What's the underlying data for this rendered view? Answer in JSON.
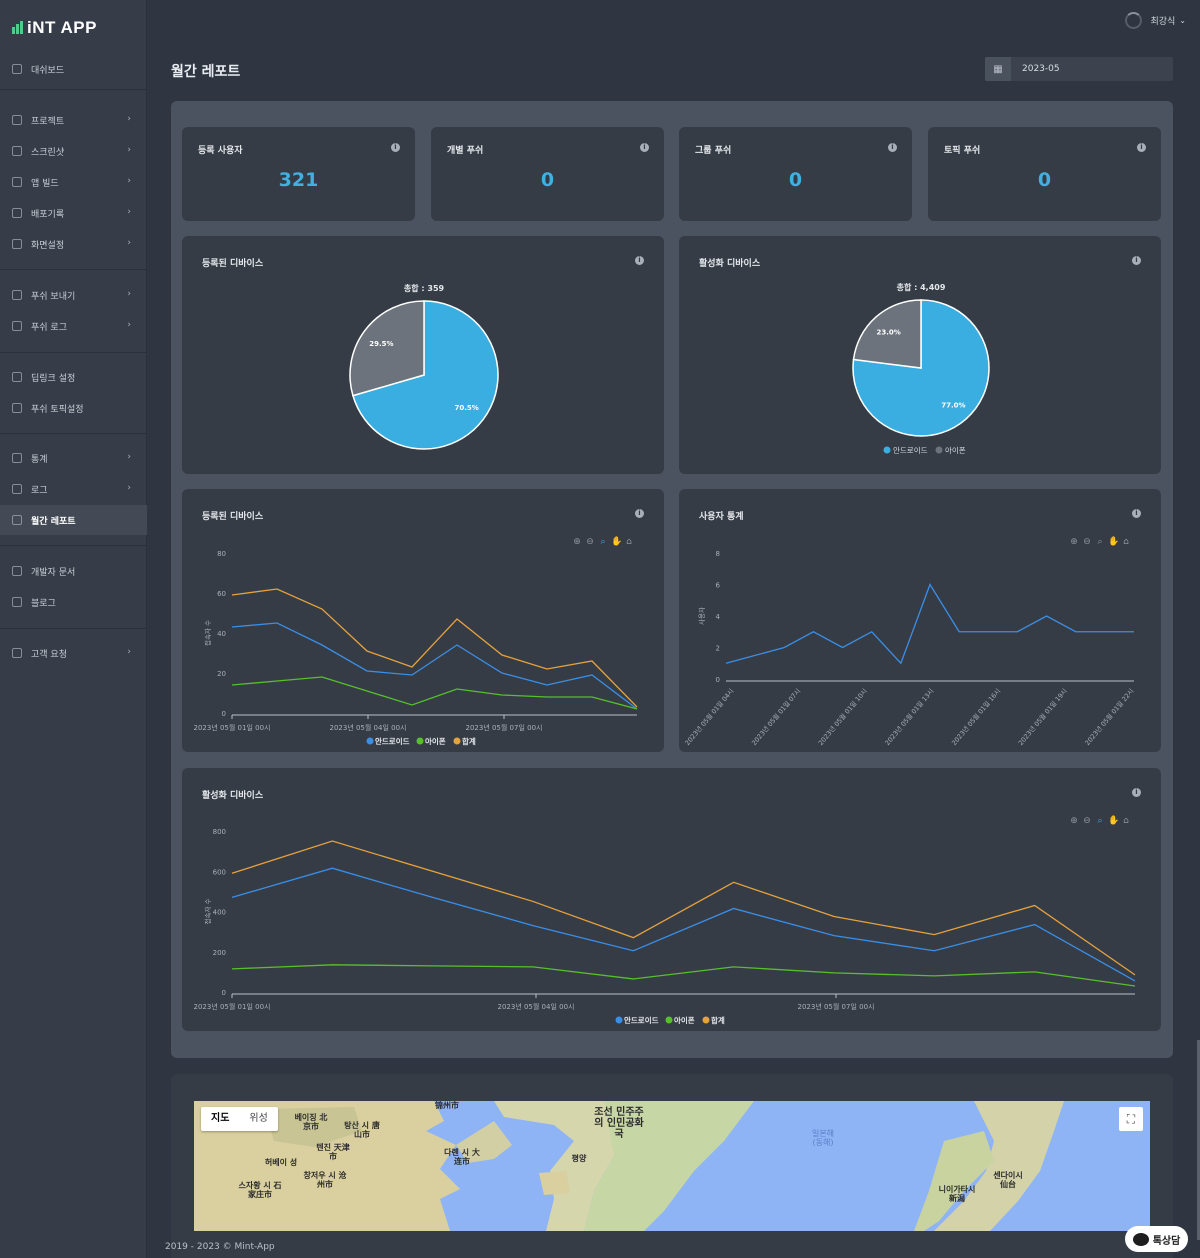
{
  "app": {
    "logo_text": "iNT APP"
  },
  "sidebar": {
    "items": [
      {
        "label": "대쉬보드",
        "icon": "dashboard-icon",
        "chevron": false
      },
      {
        "label": "프로젝트",
        "icon": "shield-icon",
        "chevron": true
      },
      {
        "label": "스크린샷",
        "icon": "send-icon",
        "chevron": true
      },
      {
        "label": "앱 빌드",
        "icon": "shield-icon",
        "chevron": true
      },
      {
        "label": "배포기록",
        "icon": "shield-icon",
        "chevron": true
      },
      {
        "label": "화면설정",
        "icon": "window-icon",
        "chevron": true
      },
      {
        "label": "푸쉬 보내기",
        "icon": "send-icon",
        "chevron": true
      },
      {
        "label": "푸쉬 로그",
        "icon": "send-icon",
        "chevron": true
      },
      {
        "label": "딥링크 설정",
        "icon": "document-icon",
        "chevron": false
      },
      {
        "label": "푸쉬 토픽설정",
        "icon": "document-icon",
        "chevron": false
      },
      {
        "label": "통계",
        "icon": "bar-chart-icon",
        "chevron": true
      },
      {
        "label": "로그",
        "icon": "table-icon",
        "chevron": true
      },
      {
        "label": "월간 레포트",
        "icon": "calendar-icon",
        "chevron": false,
        "active": true
      },
      {
        "label": "개발자 문서",
        "icon": "document-icon",
        "chevron": false
      },
      {
        "label": "블로그",
        "icon": "pen-icon",
        "chevron": false
      },
      {
        "label": "고객 요청",
        "icon": "chat-icon",
        "chevron": true
      }
    ]
  },
  "header": {
    "user_name": "최강식",
    "page_title": "월간 레포트",
    "date_value": "2023-05"
  },
  "stats": [
    {
      "title": "등록 사용자",
      "value": "321"
    },
    {
      "title": "개별 푸쉬",
      "value": "0"
    },
    {
      "title": "그룹 푸쉬",
      "value": "0"
    },
    {
      "title": "토픽 푸쉬",
      "value": "0"
    }
  ],
  "colors": {
    "android": "#3aaee0",
    "iphone": "#6c737c",
    "line_android": "#3a8ee6",
    "line_iphone": "#56c02b",
    "line_total": "#e6a23c"
  },
  "chart_data": [
    {
      "type": "pie",
      "title": "등록된 디바이스",
      "total_label": "총합 : 359",
      "slices": [
        {
          "name": "안드로이드",
          "value": 70.5,
          "label": "70.5%"
        },
        {
          "name": "아이폰",
          "value": 29.5,
          "label": "29.5%"
        }
      ]
    },
    {
      "type": "pie",
      "title": "활성화 디바이스",
      "total_label": "총합 : 4,409",
      "slices": [
        {
          "name": "안드로이드",
          "value": 77.0,
          "label": "77.0%"
        },
        {
          "name": "아이폰",
          "value": 23.0,
          "label": "23.0%"
        }
      ],
      "legend": [
        "안드로이드",
        "아이폰"
      ]
    },
    {
      "type": "line",
      "title": "등록된 디바이스",
      "ylabel": "접속자 수",
      "ylim": [
        0,
        80
      ],
      "yticks": [
        "0",
        "20",
        "40",
        "60",
        "80"
      ],
      "xtick_labels": [
        "2023년 05월 01일 00시",
        "2023년 05월 04일 00시",
        "2023년 05월 07일 00시"
      ],
      "legend": [
        "안드로이드",
        "아이폰",
        "합계"
      ],
      "series": [
        {
          "name": "안드로이드",
          "values": [
            43,
            45,
            34,
            21,
            19,
            34,
            20,
            14,
            19,
            2
          ]
        },
        {
          "name": "아이폰",
          "values": [
            14,
            16,
            18,
            11,
            4,
            12,
            9,
            8,
            8,
            2
          ]
        },
        {
          "name": "합계",
          "values": [
            59,
            62,
            52,
            31,
            23,
            47,
            29,
            22,
            26,
            3
          ]
        }
      ]
    },
    {
      "type": "line",
      "title": "사용자 통계",
      "ylabel": "사용자",
      "ylim": [
        0,
        8
      ],
      "yticks": [
        "0",
        "2",
        "4",
        "6",
        "8"
      ],
      "xtick_labels": [
        "2023년 05월 01일 04시",
        "2023년 05월 01일 07시",
        "2023년 05월 01일 10시",
        "2023년 05월 01일 13시",
        "2023년 05월 01일 16시",
        "2023년 05월 01일 19시",
        "2023년 05월 01일 22시"
      ],
      "series": [
        {
          "name": "사용자",
          "values": [
            1,
            1.5,
            2,
            3,
            2,
            3,
            1,
            6,
            3,
            3,
            3,
            4,
            3,
            3,
            3
          ]
        }
      ]
    },
    {
      "type": "line",
      "title": "활성화 디바이스",
      "ylabel": "접속자 수",
      "ylim": [
        0,
        800
      ],
      "yticks": [
        "0",
        "200",
        "400",
        "600",
        "800"
      ],
      "xtick_labels": [
        "2023년 05월 01일 00시",
        "2023년 05월 04일 00시",
        "2023년 05월 07일 00시"
      ],
      "legend": [
        "안드로이드",
        "아이폰",
        "합계"
      ],
      "series": [
        {
          "name": "안드로이드",
          "values": [
            470,
            615,
            470,
            330,
            205,
            415,
            280,
            205,
            335,
            55
          ]
        },
        {
          "name": "아이폰",
          "values": [
            115,
            135,
            130,
            125,
            65,
            125,
            95,
            80,
            100,
            30
          ]
        },
        {
          "name": "합계",
          "values": [
            590,
            750,
            600,
            450,
            270,
            545,
            375,
            285,
            430,
            85
          ]
        }
      ]
    }
  ],
  "map": {
    "tabs": [
      "지도",
      "위성"
    ],
    "labels": [
      "베이징 北京市",
      "탕산 시 唐山市",
      "텐진 天津市",
      "허베이 성",
      "창저우 시 沧州市",
      "스자황 시 石家庄市",
      "다롄 시 大连市",
      "锦州市",
      "평양",
      "조선 민주주의 인민공화국",
      "일본해 (동해)",
      "센다이시 仙台",
      "니이가타시 新潟"
    ]
  },
  "footer": {
    "copyright": "2019 - 2023 © Mint-App"
  },
  "chat": {
    "label": "톡상담"
  }
}
